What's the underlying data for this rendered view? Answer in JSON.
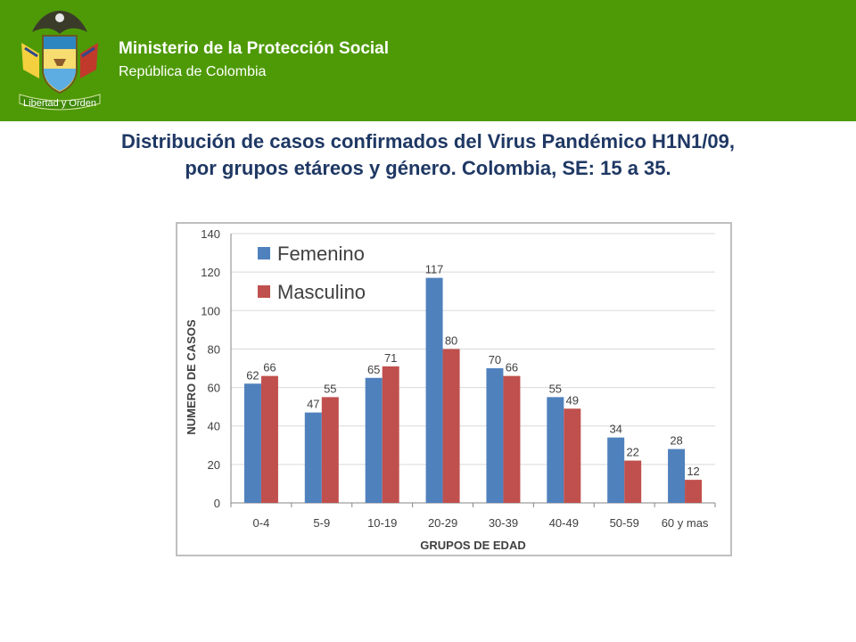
{
  "header": {
    "ministry_name": "Ministerio de la Protección Social",
    "ministry_subtitle": "República de Colombia",
    "emblem_motto": "Libertad y Orden",
    "background_color": "#4e9a06",
    "emblem_icon": "colombia-coat-of-arms-icon"
  },
  "title": {
    "line1": "Distribución de casos confirmados del Virus Pandémico H1N1/09,",
    "line2": "por grupos etáreos y género. Colombia, SE: 15 a 35."
  },
  "chart_data": {
    "type": "bar",
    "categories": [
      "0-4",
      "5-9",
      "10-19",
      "20-29",
      "30-39",
      "40-49",
      "50-59",
      "60 y mas"
    ],
    "series": [
      {
        "name": "Femenino",
        "color": "#4f81bd",
        "values": [
          62,
          47,
          65,
          117,
          70,
          55,
          34,
          28
        ]
      },
      {
        "name": "Masculino",
        "color": "#c0504d",
        "values": [
          66,
          55,
          71,
          80,
          66,
          49,
          22,
          12
        ]
      }
    ],
    "xlabel": "GRUPOS DE EDAD",
    "ylabel": "NUMERO DE CASOS",
    "ylim": [
      0,
      140
    ],
    "yticks": [
      0,
      20,
      40,
      60,
      80,
      100,
      120,
      140
    ],
    "grid": true,
    "legend": "top-left",
    "data_labels": true
  }
}
